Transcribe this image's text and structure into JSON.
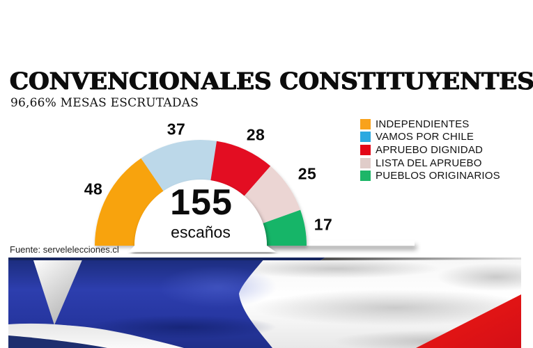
{
  "chart_data": {
    "type": "pie",
    "variant": "half-donut-gauge",
    "title": "CONVENCIONALES CONSTITUYENTES",
    "subtitle": "96,66% MESAS ESCRUTADAS",
    "categories": [
      "INDEPENDIENTES",
      "VAMOS POR CHILE",
      "APRUEBO DIGNIDAD",
      "LISTA DEL APRUEBO",
      "PUEBLOS ORIGINARIOS"
    ],
    "values": [
      48,
      37,
      28,
      25,
      17
    ],
    "total": 155,
    "center_label": "155",
    "center_sublabel": "escaños",
    "arc_colors": [
      "#F8A30D",
      "#BCD8E9",
      "#E30D23",
      "#EBD5D3",
      "#13B567"
    ],
    "legend_colors": [
      "#F9A21B",
      "#2BA9E0",
      "#E30617",
      "#E0CCC9",
      "#1DB668"
    ],
    "legend_position": "right",
    "arc_span_degrees": 180,
    "source": "Fuente: servelelecciones.cl"
  },
  "footer_image": {
    "alt": "Waving Chilean flag photo",
    "colors": {
      "blue": "#2636A8",
      "red": "#E3131C",
      "white": "#F4F4F4",
      "navy_edge": "#16255E"
    }
  }
}
